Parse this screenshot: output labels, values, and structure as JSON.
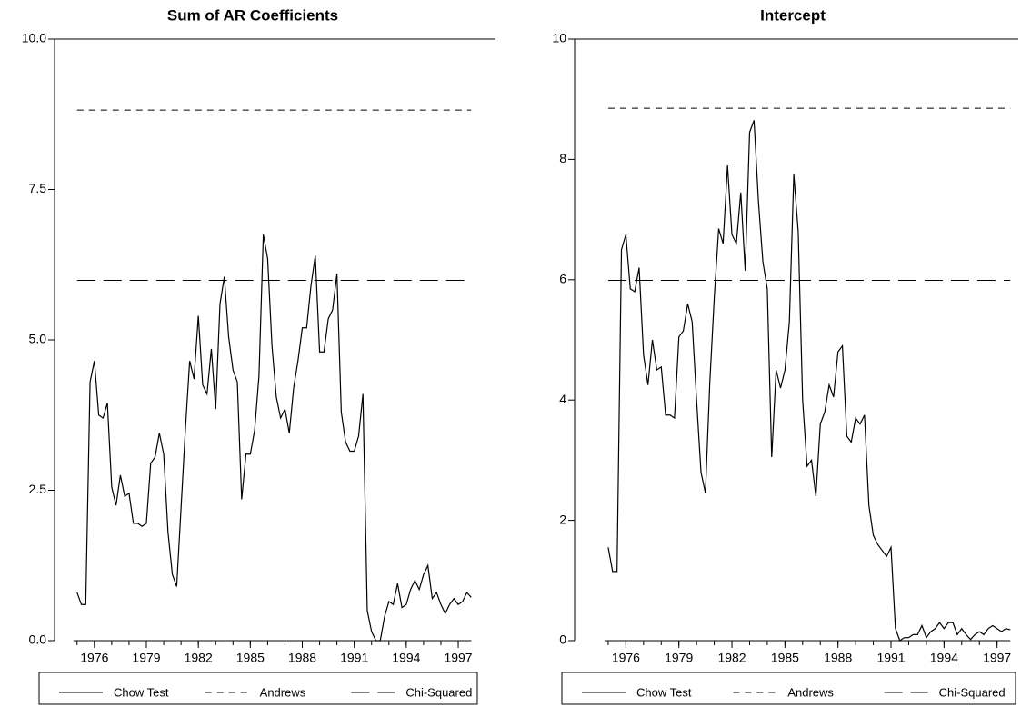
{
  "chart_data": [
    {
      "type": "line",
      "title": "Sum of AR Coefficients",
      "x": [
        1975,
        1975.25,
        1975.5,
        1975.75,
        1976,
        1976.25,
        1976.5,
        1976.75,
        1977,
        1977.25,
        1977.5,
        1977.75,
        1978,
        1978.25,
        1978.5,
        1978.75,
        1979,
        1979.25,
        1979.5,
        1979.75,
        1980,
        1980.25,
        1980.5,
        1980.75,
        1981,
        1981.25,
        1981.5,
        1981.75,
        1982,
        1982.25,
        1982.5,
        1982.75,
        1983,
        1983.25,
        1983.5,
        1983.75,
        1984,
        1984.25,
        1984.5,
        1984.75,
        1985,
        1985.25,
        1985.5,
        1985.75,
        1986,
        1986.25,
        1986.5,
        1986.75,
        1987,
        1987.25,
        1987.5,
        1987.75,
        1988,
        1988.25,
        1988.5,
        1988.75,
        1989,
        1989.25,
        1989.5,
        1989.75,
        1990,
        1990.25,
        1990.5,
        1990.75,
        1991,
        1991.25,
        1991.5,
        1991.75,
        1992,
        1992.25,
        1992.5,
        1992.75,
        1993,
        1993.25,
        1993.5,
        1993.75,
        1994,
        1994.25,
        1994.5,
        1994.75,
        1995,
        1995.25,
        1995.5,
        1995.75,
        1996,
        1996.25,
        1996.5,
        1996.75,
        1997,
        1997.25,
        1997.5,
        1997.75
      ],
      "series": [
        {
          "name": "Chow Test",
          "color": "#000000",
          "dash": "solid",
          "values": [
            0.8,
            0.6,
            0.6,
            4.3,
            4.65,
            3.75,
            3.7,
            3.95,
            2.55,
            2.25,
            2.75,
            2.4,
            2.45,
            1.95,
            1.95,
            1.9,
            1.95,
            2.95,
            3.05,
            3.45,
            3.1,
            1.8,
            1.1,
            0.9,
            2.2,
            3.5,
            4.65,
            4.35,
            5.4,
            4.25,
            4.1,
            4.85,
            3.85,
            5.6,
            6.05,
            5.05,
            4.5,
            4.3,
            2.35,
            3.1,
            3.1,
            3.5,
            4.4,
            6.75,
            6.35,
            4.9,
            4.05,
            3.7,
            3.85,
            3.45,
            4.2,
            4.65,
            5.2,
            5.2,
            5.9,
            6.4,
            4.8,
            4.8,
            5.35,
            5.5,
            6.1,
            3.8,
            3.3,
            3.15,
            3.15,
            3.4,
            4.1,
            0.5,
            0.15,
            0.0,
            0.0,
            0.4,
            0.65,
            0.6,
            0.95,
            0.55,
            0.6,
            0.85,
            1.0,
            0.85,
            1.1,
            1.25,
            0.7,
            0.8,
            0.6,
            0.45,
            0.6,
            0.7,
            0.6,
            0.65,
            0.8,
            0.72
          ]
        },
        {
          "name": "Andrews",
          "color": "#000000",
          "dash": "short",
          "value": 8.82
        },
        {
          "name": "Chi-Squared",
          "color": "#000000",
          "dash": "long",
          "value": 5.99
        }
      ],
      "xlim": [
        1973.7,
        1999.15
      ],
      "xticks": [
        1976,
        1979,
        1982,
        1985,
        1988,
        1991,
        1994,
        1997
      ],
      "xminorticks": [
        1975,
        1976,
        1977,
        1978,
        1979,
        1980,
        1981,
        1982,
        1983,
        1984,
        1985,
        1986,
        1987,
        1988,
        1989,
        1990,
        1991,
        1992,
        1993,
        1994,
        1995,
        1996,
        1997
      ],
      "ylim": [
        0,
        10
      ],
      "yticks": [
        {
          "value": 0,
          "label": "0.0"
        },
        {
          "value": 2.5,
          "label": "2.5"
        },
        {
          "value": 5,
          "label": "5.0"
        },
        {
          "value": 7.5,
          "label": "7.5"
        },
        {
          "value": 10,
          "label": "10.0"
        }
      ]
    },
    {
      "type": "line",
      "title": "Intercept",
      "x": [
        1975,
        1975.25,
        1975.5,
        1975.75,
        1976,
        1976.25,
        1976.5,
        1976.75,
        1977,
        1977.25,
        1977.5,
        1977.75,
        1978,
        1978.25,
        1978.5,
        1978.75,
        1979,
        1979.25,
        1979.5,
        1979.75,
        1980,
        1980.25,
        1980.5,
        1980.75,
        1981,
        1981.25,
        1981.5,
        1981.75,
        1982,
        1982.25,
        1982.5,
        1982.75,
        1983,
        1983.25,
        1983.5,
        1983.75,
        1984,
        1984.25,
        1984.5,
        1984.75,
        1985,
        1985.25,
        1985.5,
        1985.75,
        1986,
        1986.25,
        1986.5,
        1986.75,
        1987,
        1987.25,
        1987.5,
        1987.75,
        1988,
        1988.25,
        1988.5,
        1988.75,
        1989,
        1989.25,
        1989.5,
        1989.75,
        1990,
        1990.25,
        1990.5,
        1990.75,
        1991,
        1991.25,
        1991.5,
        1991.75,
        1992,
        1992.25,
        1992.5,
        1992.75,
        1993,
        1993.25,
        1993.5,
        1993.75,
        1994,
        1994.25,
        1994.5,
        1994.75,
        1995,
        1995.25,
        1995.5,
        1995.75,
        1996,
        1996.25,
        1996.5,
        1996.75,
        1997,
        1997.25,
        1997.5,
        1997.75
      ],
      "series": [
        {
          "name": "Chow Test",
          "color": "#000000",
          "dash": "solid",
          "values": [
            1.55,
            1.15,
            1.15,
            6.5,
            6.75,
            5.85,
            5.8,
            6.2,
            4.75,
            4.25,
            5.0,
            4.5,
            4.55,
            3.75,
            3.75,
            3.7,
            5.05,
            5.15,
            5.6,
            5.3,
            4.0,
            2.8,
            2.45,
            4.3,
            5.7,
            6.85,
            6.6,
            7.9,
            6.75,
            6.6,
            7.45,
            6.15,
            8.45,
            8.65,
            7.3,
            6.3,
            5.85,
            3.05,
            4.5,
            4.2,
            4.5,
            5.3,
            7.75,
            6.8,
            4.0,
            2.9,
            3.0,
            2.4,
            3.6,
            3.8,
            4.25,
            4.05,
            4.8,
            4.9,
            3.4,
            3.3,
            3.7,
            3.6,
            3.75,
            2.25,
            1.75,
            1.6,
            1.5,
            1.4,
            1.55,
            0.2,
            0.0,
            0.05,
            0.05,
            0.1,
            0.1,
            0.25,
            0.05,
            0.15,
            0.2,
            0.3,
            0.2,
            0.3,
            0.3,
            0.1,
            0.2,
            0.1,
            0.02,
            0.1,
            0.15,
            0.1,
            0.2,
            0.25,
            0.2,
            0.15,
            0.2,
            0.18
          ]
        },
        {
          "name": "Andrews",
          "color": "#000000",
          "dash": "short",
          "value": 8.85
        },
        {
          "name": "Chi-Squared",
          "color": "#000000",
          "dash": "long",
          "value": 5.99
        }
      ],
      "xlim": [
        1973.1,
        1998.2
      ],
      "xticks": [
        1976,
        1979,
        1982,
        1985,
        1988,
        1991,
        1994,
        1997
      ],
      "xminorticks": [
        1975,
        1976,
        1977,
        1978,
        1979,
        1980,
        1981,
        1982,
        1983,
        1984,
        1985,
        1986,
        1987,
        1988,
        1989,
        1990,
        1991,
        1992,
        1993,
        1994,
        1995,
        1996,
        1997
      ],
      "ylim": [
        0,
        10
      ],
      "yticks": [
        0,
        2,
        4,
        6,
        8,
        10
      ]
    }
  ]
}
